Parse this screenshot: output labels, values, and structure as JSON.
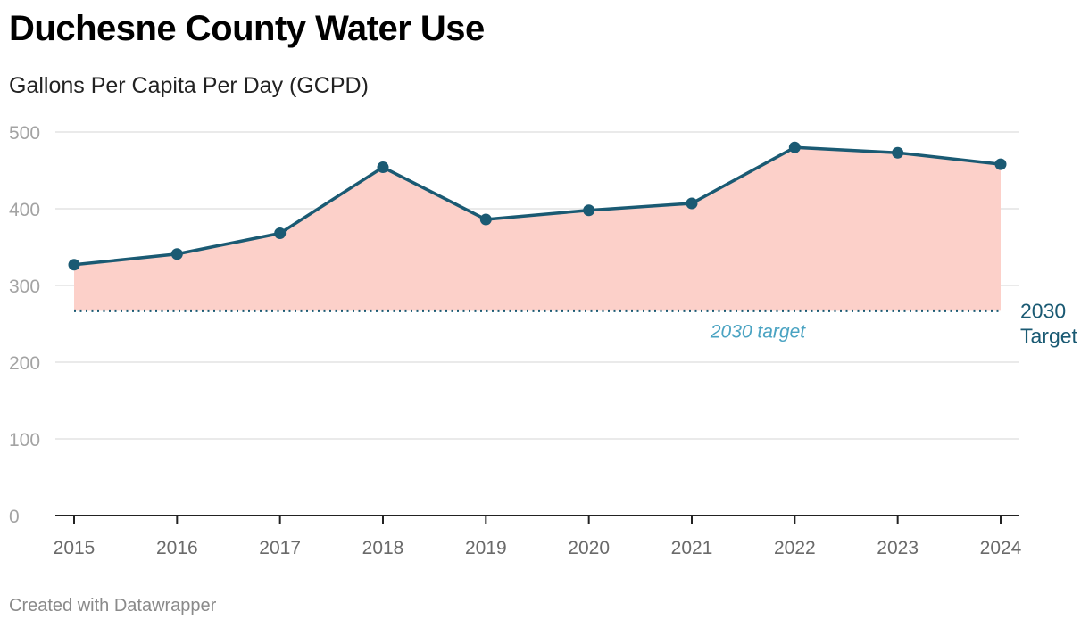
{
  "header": {
    "title": "Duchesne County Water Use",
    "subtitle": "Gallons Per Capita Per Day (GCPD)"
  },
  "footer": {
    "credit": "Created with Datawrapper"
  },
  "colors": {
    "line": "#1a5a73",
    "area": "#fcd0c9",
    "target_annotation": "#4aa3c2",
    "grid": "#e3e3e3"
  },
  "chart_data": {
    "type": "area",
    "title": "Duchesne County Water Use",
    "subtitle": "Gallons Per Capita Per Day (GCPD)",
    "xlabel": "",
    "ylabel": "",
    "x": [
      "2015",
      "2016",
      "2017",
      "2018",
      "2019",
      "2020",
      "2021",
      "2022",
      "2023",
      "2024"
    ],
    "series": [
      {
        "name": "GCPD",
        "values": [
          327,
          341,
          368,
          454,
          386,
          398,
          407,
          480,
          473,
          458
        ]
      }
    ],
    "ylim": [
      0,
      500
    ],
    "yticks": [
      0,
      100,
      200,
      300,
      400,
      500
    ],
    "grid": true,
    "reference_line": {
      "value": 267,
      "annotation": "2030 target",
      "label_line1": "2030",
      "label_line2": "Target"
    }
  }
}
